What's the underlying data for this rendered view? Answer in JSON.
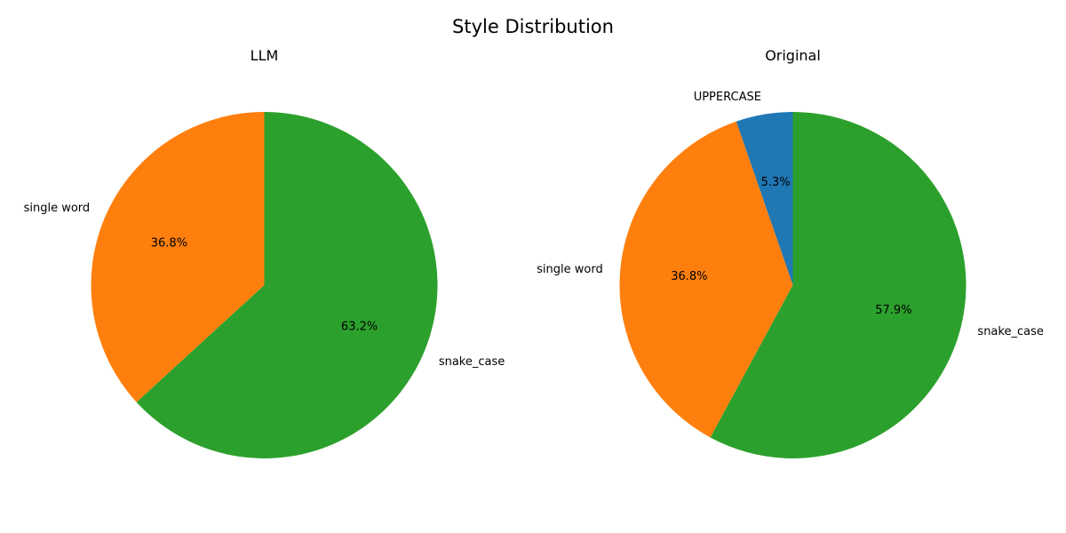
{
  "title": "Style Distribution",
  "chart_data": [
    {
      "type": "pie",
      "title": "LLM",
      "slices": [
        {
          "label": "single word",
          "value": 36.8,
          "pct_label": "36.8%",
          "color": "#ff7f0e"
        },
        {
          "label": "snake_case",
          "value": 63.2,
          "pct_label": "63.2%",
          "color": "#2ca02c"
        }
      ]
    },
    {
      "type": "pie",
      "title": "Original",
      "slices": [
        {
          "label": "UPPERCASE",
          "value": 5.3,
          "pct_label": "5.3%",
          "color": "#1f77b4"
        },
        {
          "label": "single word",
          "value": 36.8,
          "pct_label": "36.8%",
          "color": "#ff7f0e"
        },
        {
          "label": "snake_case",
          "value": 57.9,
          "pct_label": "57.9%",
          "color": "#2ca02c"
        }
      ]
    }
  ]
}
